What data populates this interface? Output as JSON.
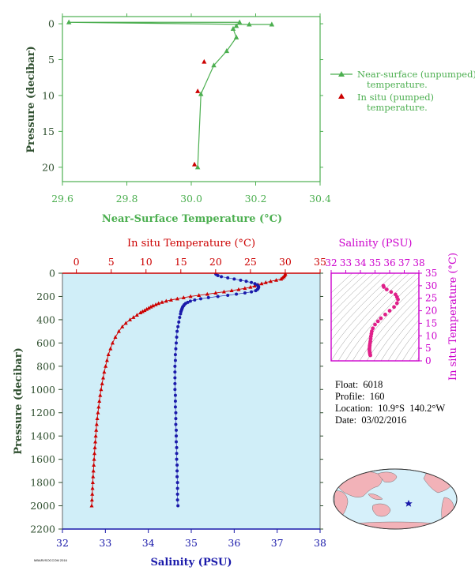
{
  "colors": {
    "green": "#4caf50",
    "dark_green": "#2f4f2f",
    "red": "#cc0000",
    "blue": "#1a1aaa",
    "magenta": "#cc00cc",
    "plot_bg": "#d0eef8",
    "land": "#f2b2b8",
    "ocean": "#d6f0fa"
  },
  "info": {
    "float_label": "Float:",
    "float_value": "6018",
    "profile_label": "Profile:",
    "profile_value": "160",
    "location_label": "Location:",
    "location_value": "10.9°S  140.2°W",
    "date_label": "Date:",
    "date_value": "03/02/2016"
  },
  "footer": "MBARI/SOCCOM 2016",
  "chart_data": [
    {
      "type": "line",
      "id": "near-surface",
      "xlabel": "Near-Surface Temperature (°C)",
      "ylabel": "Pressure (decibar)",
      "xlim": [
        29.6,
        30.4
      ],
      "ylim": [
        22,
        -1
      ],
      "xticks": [
        "29.6",
        "29.8",
        "30.0",
        "30.2",
        "30.4"
      ],
      "yticks": [
        "0",
        "5",
        "10",
        "15",
        "20"
      ],
      "legend_position": "right",
      "series": [
        {
          "name": "Near-surface (unpumped) temperature.",
          "style": "line-triangle",
          "x": [
            30.25,
            30.18,
            29.62,
            30.15,
            30.14,
            30.13,
            30.14,
            30.11,
            30.07,
            30.03,
            30.02
          ],
          "y": [
            0.1,
            0.1,
            -0.2,
            -0.2,
            0.3,
            0.7,
            1.9,
            3.8,
            5.8,
            9.8,
            20.0
          ]
        },
        {
          "name": "In situ (pumped) temperature.",
          "style": "marker-triangle",
          "x": [
            30.04,
            30.02,
            30.01
          ],
          "y": [
            5.3,
            9.4,
            19.6
          ]
        }
      ]
    },
    {
      "type": "scatter",
      "id": "profile",
      "xlabel_top": "In situ Temperature (°C)",
      "xlabel_bottom": "Salinity (PSU)",
      "ylabel": "Pressure (decibar)",
      "temp_lim": [
        -2,
        35
      ],
      "sal_lim": [
        32,
        38
      ],
      "ylim": [
        2200,
        0
      ],
      "temp_ticks": [
        "0",
        "5",
        "10",
        "15",
        "20",
        "25",
        "30",
        "35"
      ],
      "sal_ticks": [
        "32",
        "33",
        "34",
        "35",
        "36",
        "37",
        "38"
      ],
      "yticks": [
        "0",
        "200",
        "400",
        "600",
        "800",
        "1000",
        "1200",
        "1400",
        "1600",
        "1800",
        "2000",
        "2200"
      ],
      "series": [
        {
          "name": "In situ Temperature (°C)",
          "color": "#cc0000",
          "p": [
            5,
            10,
            20,
            30,
            40,
            50,
            60,
            70,
            80,
            90,
            100,
            110,
            120,
            130,
            140,
            150,
            160,
            170,
            180,
            190,
            200,
            210,
            220,
            230,
            240,
            250,
            260,
            270,
            280,
            290,
            300,
            310,
            320,
            330,
            340,
            360,
            380,
            400,
            430,
            460,
            500,
            550,
            600,
            650,
            700,
            750,
            800,
            850,
            900,
            950,
            1000,
            1050,
            1100,
            1150,
            1200,
            1250,
            1300,
            1350,
            1400,
            1450,
            1500,
            1550,
            1600,
            1650,
            1700,
            1750,
            1800,
            1850,
            1900,
            1950,
            2000
          ],
          "v": [
            30.0,
            30.0,
            29.9,
            29.8,
            29.6,
            29.4,
            28.7,
            27.9,
            27.2,
            26.6,
            26.1,
            25.6,
            25.0,
            24.2,
            23.3,
            22.3,
            21.2,
            20.0,
            18.8,
            17.6,
            16.4,
            15.4,
            14.5,
            13.6,
            12.9,
            12.3,
            11.8,
            11.4,
            11.0,
            10.7,
            10.4,
            10.1,
            9.8,
            9.5,
            9.2,
            8.7,
            8.2,
            7.7,
            7.1,
            6.6,
            6.1,
            5.6,
            5.2,
            4.9,
            4.6,
            4.4,
            4.2,
            4.0,
            3.85,
            3.7,
            3.55,
            3.42,
            3.3,
            3.2,
            3.1,
            3.0,
            2.92,
            2.85,
            2.78,
            2.72,
            2.66,
            2.6,
            2.55,
            2.5,
            2.45,
            2.4,
            2.36,
            2.32,
            2.28,
            2.24,
            2.2
          ]
        },
        {
          "name": "Salinity (PSU)",
          "color": "#1a1aaa",
          "p": [
            5,
            10,
            20,
            30,
            40,
            50,
            60,
            70,
            80,
            90,
            100,
            110,
            120,
            130,
            140,
            150,
            160,
            170,
            180,
            190,
            200,
            210,
            220,
            230,
            240,
            250,
            260,
            270,
            280,
            290,
            300,
            310,
            320,
            330,
            350,
            380,
            420,
            460,
            500,
            550,
            600,
            650,
            700,
            750,
            800,
            850,
            900,
            950,
            1000,
            1050,
            1100,
            1150,
            1200,
            1250,
            1300,
            1350,
            1400,
            1450,
            1500,
            1550,
            1600,
            1650,
            1700,
            1750,
            1800,
            1850,
            1900,
            1950,
            2000
          ],
          "v": [
            35.57,
            35.58,
            35.62,
            35.7,
            35.85,
            36.0,
            36.15,
            36.28,
            36.4,
            36.48,
            36.53,
            36.56,
            36.57,
            36.56,
            36.54,
            36.5,
            36.4,
            36.25,
            36.05,
            35.85,
            35.62,
            35.4,
            35.22,
            35.08,
            34.98,
            34.92,
            34.87,
            34.84,
            34.82,
            34.8,
            34.79,
            34.78,
            34.77,
            34.76,
            34.75,
            34.73,
            34.71,
            34.69,
            34.67,
            34.66,
            34.65,
            34.64,
            34.63,
            34.63,
            34.62,
            34.62,
            34.62,
            34.62,
            34.62,
            34.63,
            34.63,
            34.63,
            34.64,
            34.64,
            34.64,
            34.65,
            34.65,
            34.65,
            34.66,
            34.66,
            34.66,
            34.67,
            34.67,
            34.67,
            34.68,
            34.68,
            34.68,
            34.68,
            34.69
          ]
        }
      ]
    },
    {
      "type": "scatter",
      "id": "ts-diagram",
      "title": "Salinity (PSU)",
      "ylabel": "In situ Temperature (°C)",
      "xlim": [
        32,
        38
      ],
      "ylim": [
        0,
        35
      ],
      "xticks": [
        "32",
        "33",
        "34",
        "35",
        "36",
        "37",
        "38"
      ],
      "yticks": [
        "0",
        "5",
        "10",
        "15",
        "20",
        "25",
        "30",
        "35"
      ],
      "series": [
        {
          "name": "T-S",
          "color": "#e0208a",
          "s": [
            35.57,
            35.6,
            35.8,
            36.1,
            36.4,
            36.5,
            36.57,
            36.5,
            36.3,
            36.0,
            35.7,
            35.4,
            35.2,
            35.0,
            34.85,
            34.78,
            34.75,
            34.72,
            34.7,
            34.68,
            34.66,
            34.64,
            34.63,
            34.62,
            34.62,
            34.63,
            34.64,
            34.65,
            34.66,
            34.67,
            34.68
          ],
          "t": [
            30.0,
            29.5,
            28.5,
            27.5,
            26.5,
            25.5,
            24.5,
            23.0,
            21.5,
            20.0,
            18.5,
            17.0,
            15.8,
            14.5,
            13.0,
            11.8,
            10.8,
            9.8,
            8.8,
            7.8,
            7.0,
            6.2,
            5.5,
            4.8,
            4.3,
            3.8,
            3.4,
            3.0,
            2.6,
            2.4,
            2.2
          ]
        }
      ]
    },
    {
      "type": "map",
      "id": "location-map",
      "marker_label": "float location",
      "marker_lon": -140.2,
      "marker_lat": -10.9
    }
  ]
}
